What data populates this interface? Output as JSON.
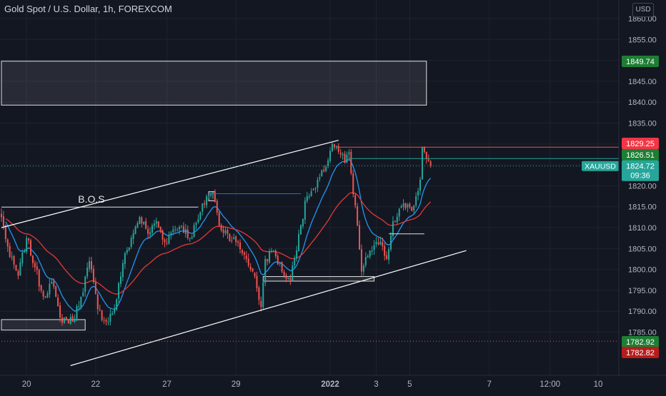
{
  "header": {
    "symbol_title": "Gold Spot / U.S. Dollar, 1h, FOREXCOM",
    "currency": "USD"
  },
  "colors": {
    "background": "#131722",
    "grid": "#1f2330",
    "up": "#26a69a",
    "down": "#ef5350",
    "ema_fast": "#2196f3",
    "ema_slow": "#e53935",
    "text": "#b2b5be",
    "box": "#e0e0e0"
  },
  "chart_data": {
    "type": "candlestick",
    "symbol": "XAUUSD",
    "timeframe": "1h",
    "yaxis": {
      "ticks": [
        1785,
        1790,
        1795,
        1800,
        1805,
        1810,
        1815,
        1820,
        1825,
        1830,
        1835,
        1840,
        1845,
        1850,
        1855,
        1860
      ],
      "tick_labels": [
        "1785.00",
        "1790.00",
        "1795.00",
        "1800.00",
        "1805.00",
        "1810.00",
        "1815.00",
        "1820.00",
        "1825.00",
        "1830.00",
        "1835.00",
        "1840.00",
        "1845.00",
        "1850.00",
        "1855.00",
        "1860.00"
      ],
      "range": [
        1776.8,
        1862.8
      ]
    },
    "xaxis": {
      "ticks": [
        {
          "label": "20",
          "bold": false
        },
        {
          "label": "22",
          "bold": false
        },
        {
          "label": "27",
          "bold": false
        },
        {
          "label": "29",
          "bold": false
        },
        {
          "label": "2022",
          "bold": true
        },
        {
          "label": "3",
          "bold": false
        },
        {
          "label": "5",
          "bold": false
        },
        {
          "label": "7",
          "bold": false
        },
        {
          "label": "12:00",
          "bold": false
        },
        {
          "label": "10",
          "bold": false
        }
      ]
    },
    "price_anchors": [
      [
        0,
        1812.5
      ],
      [
        4,
        1803
      ],
      [
        8,
        1798.5
      ],
      [
        12,
        1807.5
      ],
      [
        16,
        1800.5
      ],
      [
        20,
        1793.5
      ],
      [
        24,
        1797
      ],
      [
        28,
        1788.5
      ],
      [
        34,
        1787.5
      ],
      [
        38,
        1793.5
      ],
      [
        42,
        1802
      ],
      [
        46,
        1790.5
      ],
      [
        50,
        1787.5
      ],
      [
        54,
        1790.5
      ],
      [
        58,
        1801.5
      ],
      [
        62,
        1807.5
      ],
      [
        66,
        1812.5
      ],
      [
        70,
        1808.5
      ],
      [
        74,
        1811.5
      ],
      [
        78,
        1806.5
      ],
      [
        82,
        1809.5
      ],
      [
        86,
        1810.5
      ],
      [
        90,
        1807.5
      ],
      [
        94,
        1812
      ],
      [
        98,
        1817.5
      ],
      [
        101,
        1818.5
      ],
      [
        104,
        1810.5
      ],
      [
        108,
        1808.5
      ],
      [
        112,
        1806.5
      ],
      [
        116,
        1803.5
      ],
      [
        120,
        1799.5
      ],
      [
        122,
        1795.5
      ],
      [
        124,
        1791
      ],
      [
        126,
        1802.5
      ],
      [
        130,
        1804.5
      ],
      [
        134,
        1799.5
      ],
      [
        138,
        1797.5
      ],
      [
        142,
        1808.5
      ],
      [
        146,
        1817.5
      ],
      [
        150,
        1819.5
      ],
      [
        154,
        1823.5
      ],
      [
        158,
        1830
      ],
      [
        162,
        1827.5
      ],
      [
        164,
        1825.5
      ],
      [
        166,
        1828
      ],
      [
        168,
        1818
      ],
      [
        170,
        1810.5
      ],
      [
        172,
        1799.5
      ],
      [
        176,
        1804.5
      ],
      [
        180,
        1806
      ],
      [
        182,
        1805.5
      ],
      [
        184,
        1802.5
      ],
      [
        187,
        1811.5
      ],
      [
        190,
        1814.5
      ],
      [
        194,
        1815.5
      ],
      [
        196,
        1814
      ],
      [
        198,
        1817.5
      ],
      [
        200,
        1821.5
      ],
      [
        201,
        1829.2
      ],
      [
        203,
        1826.5
      ],
      [
        205,
        1824.7
      ]
    ],
    "current_price": {
      "label": "XAUUSD",
      "value": "1824.72",
      "countdown": "09:36"
    },
    "price_labels": [
      {
        "value": "1849.74",
        "color": "#1e7e34"
      },
      {
        "value": "1829.25",
        "color": "#f23645"
      },
      {
        "value": "1826.51",
        "color": "#1e7e34"
      },
      {
        "value": "1782.92",
        "color": "#1e7e34"
      },
      {
        "value": "1782.82",
        "color": "#b71c1c"
      }
    ],
    "horizontal_lines": [
      {
        "price": 1829.25,
        "from_bar": 160,
        "color": "#ef5350"
      },
      {
        "price": 1826.51,
        "from_bar": 166,
        "color": "#26a69a"
      },
      {
        "price": 1824.72,
        "from_bar": 0,
        "color": "#26a69a",
        "dotted": true
      },
      {
        "price": 1782.82,
        "from_bar": 0,
        "color": "#ef5350",
        "dotted": true
      }
    ],
    "channel": {
      "upper": {
        "from": [
          0,
          1810.0
        ],
        "to": [
          161,
          1830.9
        ]
      },
      "lower": {
        "from": [
          33,
          1777.0
        ],
        "to": [
          222,
          1804.5
        ]
      }
    },
    "annotations": [
      {
        "type": "text",
        "text": "B.O.S",
        "bar": 43,
        "price": 1816.0
      },
      {
        "type": "hline",
        "price": 1814.9,
        "from_bar": 0,
        "to_bar": 94
      },
      {
        "type": "hline",
        "price": 1818.1,
        "from_bar": 99,
        "to_bar": 143
      },
      {
        "type": "hline",
        "price": 1808.5,
        "from_bar": 185,
        "to_bar": 202
      },
      {
        "type": "box",
        "price_top": 1849.8,
        "price_bottom": 1839.3,
        "from_bar": 0,
        "to_bar": 203
      },
      {
        "type": "box",
        "price_top": 1788.0,
        "price_bottom": 1785.5,
        "from_bar": 0,
        "to_bar": 40
      },
      {
        "type": "box",
        "price_top": 1798.3,
        "price_bottom": 1797.2,
        "from_bar": 125,
        "to_bar": 178
      },
      {
        "type": "box",
        "price_top": 1818.6,
        "price_bottom": 1816.4,
        "from_bar": 99,
        "to_bar": 102
      }
    ]
  }
}
